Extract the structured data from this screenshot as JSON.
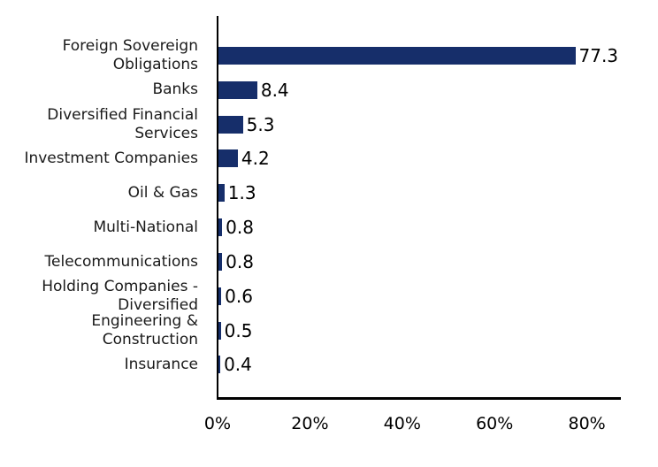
{
  "chart_data": {
    "type": "bar",
    "orientation": "horizontal",
    "title": "",
    "xlabel": "",
    "ylabel": "",
    "categories": [
      "Foreign Sovereign\nObligations",
      "Banks",
      "Diversified Financial\nServices",
      "Investment Companies",
      "Oil & Gas",
      "Multi-National",
      "Telecommunications",
      "Holding Companies -\nDiversified",
      "Engineering &\nConstruction",
      "Insurance"
    ],
    "values": [
      77.3,
      8.4,
      5.3,
      4.2,
      1.3,
      0.8,
      0.8,
      0.6,
      0.5,
      0.4
    ],
    "value_labels": [
      "77.3",
      "8.4",
      "5.3",
      "4.2",
      "1.3",
      "0.8",
      "0.8",
      "0.6",
      "0.5",
      "0.4"
    ],
    "x_ticks": [
      {
        "value": 0,
        "label": "0%"
      },
      {
        "value": 20,
        "label": "20%"
      },
      {
        "value": 40,
        "label": "40%"
      },
      {
        "value": 60,
        "label": "60%"
      },
      {
        "value": 80,
        "label": "80%"
      }
    ],
    "xlim": [
      0,
      87.5
    ],
    "grid": false,
    "legend": null,
    "bar_color": "#162e6a",
    "axis_color": "#000000",
    "label_color": "#1a1a1a",
    "value_color": "#000000"
  }
}
